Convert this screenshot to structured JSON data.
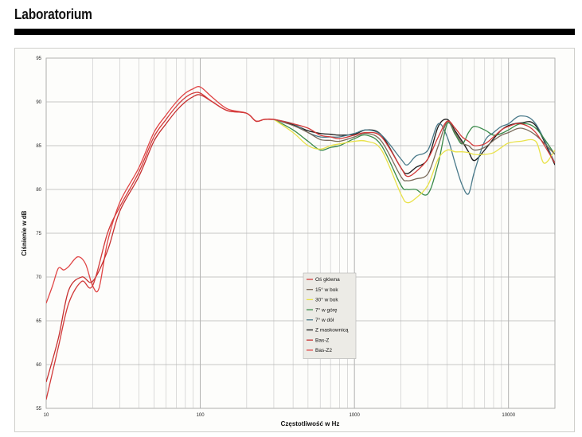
{
  "header": {
    "title": "Laboratorium"
  },
  "chart_data": {
    "type": "line",
    "xlabel": "Częstotliwość w Hz",
    "ylabel": "Ciśnienie w dB",
    "xscale": "log",
    "xlim": [
      10,
      20000
    ],
    "ylim": [
      55,
      95
    ],
    "x_ticks": [
      10,
      100,
      1000,
      10000
    ],
    "x_tick_labels": [
      "10",
      "100",
      "1000",
      "10000"
    ],
    "y_ticks": [
      55,
      60,
      65,
      70,
      75,
      80,
      85,
      90,
      95
    ],
    "grid": true,
    "legend_position": "center-bottom",
    "series": [
      {
        "name": "Oś główna",
        "color": "#d23a3a",
        "x": [
          10,
          12,
          14,
          17,
          20,
          25,
          30,
          40,
          50,
          60,
          70,
          80,
          90,
          100,
          120,
          150,
          200,
          230,
          260,
          300,
          400,
          500,
          600,
          700,
          800,
          1000,
          1200,
          1500,
          2000,
          2200,
          2500,
          3000,
          3500,
          4000,
          4500,
          5000,
          5500,
          6000,
          7000,
          8000,
          9000,
          10000,
          12000,
          15000,
          20000
        ],
        "y": [
          56,
          62,
          67,
          69.5,
          69,
          75,
          78,
          82,
          86,
          88,
          89.5,
          90.5,
          91,
          91,
          90,
          89,
          88.7,
          87.8,
          88,
          88,
          87.5,
          87,
          86.2,
          86,
          85.8,
          86.2,
          86.5,
          86,
          82.5,
          81.5,
          82,
          83.5,
          86,
          87.8,
          87,
          86,
          85.5,
          85,
          85.2,
          86,
          86.8,
          87.2,
          87.5,
          86.5,
          83
        ]
      },
      {
        "name": "15° w bok",
        "color": "#7a6a5a",
        "x": [
          300,
          400,
          500,
          600,
          700,
          800,
          1000,
          1200,
          1500,
          2000,
          2200,
          2500,
          3000,
          3500,
          4000,
          4500,
          5000,
          5500,
          6000,
          7000,
          8000,
          9000,
          10000,
          12000,
          15000,
          20000
        ],
        "y": [
          88,
          87.3,
          86.5,
          85.7,
          85.6,
          85.5,
          86,
          86.4,
          85.5,
          81.5,
          81,
          81.2,
          81.8,
          85,
          87.7,
          86.5,
          85.3,
          85,
          84.5,
          84.8,
          85.6,
          86.2,
          86.5,
          87,
          86.2,
          84
        ]
      },
      {
        "name": "30° w bok",
        "color": "#e9e24a",
        "x": [
          300,
          400,
          500,
          600,
          700,
          800,
          1000,
          1200,
          1500,
          2000,
          2200,
          2500,
          3000,
          3500,
          4000,
          4500,
          5000,
          5500,
          6000,
          7000,
          8000,
          9000,
          10000,
          12000,
          15000,
          17000,
          20000
        ],
        "y": [
          88,
          86.5,
          85,
          84.6,
          85,
          85.2,
          85.5,
          85.5,
          84.5,
          79.5,
          78.5,
          79,
          80.5,
          83.5,
          84.5,
          84.3,
          84.3,
          84.2,
          84,
          84,
          84.2,
          84.8,
          85.3,
          85.5,
          85.5,
          83,
          84.5
        ]
      },
      {
        "name": "7° w górę",
        "color": "#3a8a4a",
        "x": [
          300,
          400,
          500,
          600,
          700,
          800,
          1000,
          1200,
          1500,
          2000,
          2200,
          2500,
          3000,
          3500,
          4000,
          4500,
          5000,
          5500,
          6000,
          7000,
          8000,
          9000,
          10000,
          12000,
          15000,
          20000
        ],
        "y": [
          88,
          86.8,
          85.5,
          84.5,
          84.8,
          85,
          85.8,
          86.2,
          85,
          80.5,
          80,
          80,
          79.5,
          83,
          87.5,
          86.3,
          85.2,
          86.5,
          87.2,
          86.8,
          86.2,
          86.4,
          86.8,
          87.5,
          87,
          84
        ]
      },
      {
        "name": "7° w dół",
        "color": "#4a7a8a",
        "x": [
          300,
          400,
          500,
          600,
          700,
          800,
          1000,
          1200,
          1500,
          2000,
          2200,
          2500,
          3000,
          3500,
          4000,
          4500,
          5000,
          5500,
          6000,
          7000,
          8000,
          9000,
          10000,
          12000,
          15000,
          20000
        ],
        "y": [
          88,
          87.5,
          86.5,
          86,
          86,
          86,
          86.4,
          86.8,
          86.2,
          83.5,
          82.8,
          83.8,
          84.5,
          87.5,
          86,
          83,
          80.5,
          79.5,
          82,
          85.5,
          86.5,
          87.2,
          87.5,
          88.4,
          87.5,
          83
        ]
      },
      {
        "name": "Z maskownicą",
        "color": "#1a1a1a",
        "x": [
          300,
          400,
          500,
          600,
          700,
          800,
          1000,
          1200,
          1500,
          2000,
          2200,
          2500,
          3000,
          3500,
          4000,
          4500,
          5000,
          5500,
          6000,
          7000,
          8000,
          9000,
          10000,
          12000,
          15000,
          20000
        ],
        "y": [
          88,
          87.4,
          86.7,
          86.4,
          86.3,
          86.2,
          86.3,
          86.8,
          86.2,
          82.5,
          81.8,
          82.5,
          83.5,
          87.2,
          88,
          86.7,
          85.5,
          84.3,
          83.3,
          84.5,
          85.8,
          86.8,
          87.3,
          87.6,
          87.3,
          82.8
        ]
      },
      {
        "name": "Bas-Z",
        "color": "#c62f2f",
        "x": [
          10,
          12,
          14,
          17,
          20,
          25,
          30,
          40,
          50,
          60,
          70,
          80,
          90,
          100,
          120,
          150,
          200,
          230,
          260,
          300
        ],
        "y": [
          58,
          63,
          68.5,
          70,
          69.5,
          73,
          77.5,
          81.5,
          85.5,
          87.5,
          89,
          90,
          90.6,
          90.8,
          90,
          89,
          88.7,
          87.8,
          88,
          88
        ]
      },
      {
        "name": "Bas-Z2",
        "color": "#e04545",
        "x": [
          10,
          11,
          12,
          13,
          14,
          16,
          18,
          20,
          22,
          25,
          30,
          40,
          50,
          60,
          70,
          80,
          90,
          100,
          120,
          150,
          200,
          230,
          260,
          300
        ],
        "y": [
          67,
          69,
          71,
          70.8,
          71.2,
          72.3,
          71.5,
          69,
          68.7,
          74,
          78.5,
          82.5,
          86.5,
          88.5,
          90,
          91,
          91.5,
          91.7,
          90.5,
          89.2,
          88.7,
          87.8,
          88,
          88
        ]
      }
    ]
  }
}
